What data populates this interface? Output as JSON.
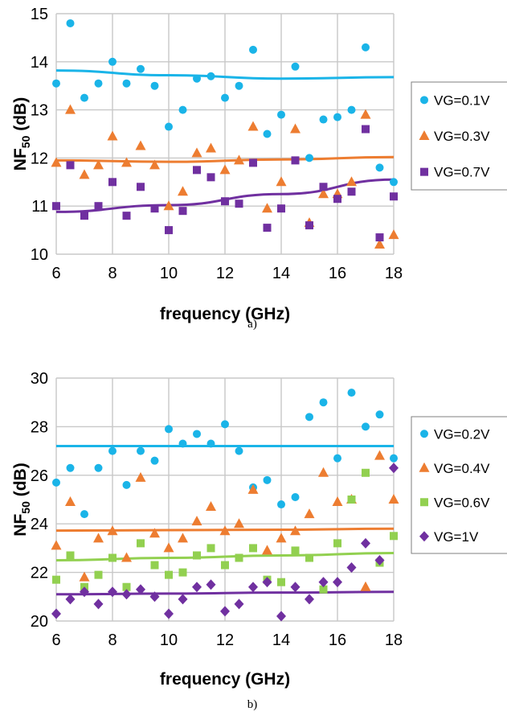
{
  "chart_data": [
    {
      "type": "scatter",
      "caption": "a)",
      "xlabel": "frequency (GHz)",
      "ylabel_main": "NF",
      "ylabel_sub": "50",
      "ylabel_unit": " (dB)",
      "xlim": [
        6,
        18
      ],
      "ylim": [
        10,
        15
      ],
      "xticks": [
        6,
        8,
        10,
        12,
        14,
        16,
        18
      ],
      "yticks": [
        10,
        11,
        12,
        13,
        14,
        15
      ],
      "grid": true,
      "legend_position": "right",
      "series": [
        {
          "name": "VG=0.1V",
          "color": "#1ab4e8",
          "marker": "circle",
          "x": [
            6,
            6.5,
            7,
            7.5,
            8,
            8.5,
            9,
            9.5,
            10,
            10.5,
            11,
            11.5,
            12,
            12.5,
            13,
            13.5,
            14,
            14.5,
            15,
            15.5,
            16,
            16.5,
            17,
            17.5,
            18
          ],
          "y": [
            13.55,
            14.8,
            13.25,
            13.55,
            14.0,
            13.55,
            13.85,
            13.5,
            12.65,
            13.0,
            13.65,
            13.7,
            13.25,
            13.5,
            14.25,
            12.5,
            12.9,
            13.9,
            12.0,
            12.8,
            12.85,
            13.0,
            14.3,
            11.8,
            11.5
          ],
          "trend": [
            13.82,
            13.72,
            13.65,
            13.68
          ]
        },
        {
          "name": "VG=0.3V",
          "color": "#ed7d31",
          "marker": "triangle",
          "x": [
            6,
            6.5,
            7,
            7.5,
            8,
            8.5,
            9,
            9.5,
            10,
            10.5,
            11,
            11.5,
            12,
            12.5,
            13,
            13.5,
            14,
            14.5,
            15,
            15.5,
            16,
            16.5,
            17,
            17.5,
            18
          ],
          "y": [
            11.9,
            13.0,
            11.65,
            11.85,
            12.45,
            11.9,
            12.25,
            11.85,
            11.0,
            11.3,
            12.1,
            12.2,
            11.75,
            11.95,
            12.65,
            10.95,
            11.5,
            12.6,
            10.65,
            11.25,
            11.25,
            11.5,
            12.9,
            10.2,
            10.4
          ],
          "trend": [
            11.95,
            11.92,
            11.97,
            12.02
          ]
        },
        {
          "name": "VG=0.7V",
          "color": "#7030a0",
          "marker": "square",
          "x": [
            6,
            6.5,
            7,
            7.5,
            8,
            8.5,
            9,
            9.5,
            10,
            10.5,
            11,
            11.5,
            12,
            12.5,
            13,
            13.5,
            14,
            14.5,
            15,
            15.5,
            16,
            16.5,
            17,
            17.5,
            18
          ],
          "y": [
            11.0,
            11.85,
            10.8,
            11.0,
            11.5,
            10.8,
            11.4,
            10.95,
            10.5,
            10.9,
            11.75,
            11.6,
            11.1,
            11.05,
            11.9,
            10.55,
            10.95,
            11.95,
            10.6,
            11.4,
            11.15,
            11.3,
            12.6,
            10.35,
            11.2
          ],
          "trend": [
            10.88,
            11.02,
            11.25,
            11.55
          ]
        }
      ]
    },
    {
      "type": "scatter",
      "caption": "b)",
      "xlabel": "frequency (GHz)",
      "ylabel_main": "NF",
      "ylabel_sub": "50",
      "ylabel_unit": " (dB)",
      "xlim": [
        6,
        18
      ],
      "ylim": [
        20,
        30
      ],
      "xticks": [
        6,
        8,
        10,
        12,
        14,
        16,
        18
      ],
      "yticks": [
        20,
        22,
        24,
        26,
        28,
        30
      ],
      "grid": true,
      "legend_position": "right",
      "series": [
        {
          "name": "VG=0.2V",
          "color": "#1ab4e8",
          "marker": "circle",
          "x": [
            6,
            6.5,
            7,
            7.5,
            8,
            8.5,
            9,
            9.5,
            10,
            10.5,
            11,
            11.5,
            12,
            12.5,
            13,
            13.5,
            14,
            14.5,
            15,
            15.5,
            16,
            16.5,
            17,
            17.5,
            18
          ],
          "y": [
            25.7,
            26.3,
            24.4,
            26.3,
            27.0,
            25.6,
            27.0,
            26.6,
            27.9,
            27.3,
            27.7,
            27.3,
            28.1,
            27.0,
            25.5,
            25.8,
            24.8,
            25.1,
            28.4,
            29.0,
            26.7,
            29.4,
            28.0,
            28.5,
            26.7
          ],
          "trend": [
            27.2,
            27.2,
            27.2,
            27.2
          ]
        },
        {
          "name": "VG=0.4V",
          "color": "#ed7d31",
          "marker": "triangle",
          "x": [
            6,
            6.5,
            7,
            7.5,
            8,
            8.5,
            9,
            9.5,
            10,
            10.5,
            11,
            11.5,
            12,
            12.5,
            13,
            13.5,
            14,
            14.5,
            15,
            15.5,
            16,
            16.5,
            17,
            17.5,
            18
          ],
          "y": [
            23.1,
            24.9,
            21.8,
            23.4,
            23.7,
            22.6,
            25.9,
            23.6,
            23.0,
            23.4,
            24.1,
            24.7,
            23.7,
            24.0,
            25.4,
            22.9,
            23.4,
            23.7,
            24.4,
            26.1,
            24.9,
            25.0,
            21.4,
            26.8,
            25.0
          ],
          "trend": [
            23.72,
            23.74,
            23.76,
            23.8
          ]
        },
        {
          "name": "VG=0.6V",
          "color": "#92d050",
          "marker": "square",
          "x": [
            6,
            6.5,
            7,
            7.5,
            8,
            8.5,
            9,
            9.5,
            10,
            10.5,
            11,
            11.5,
            12,
            12.5,
            13,
            13.5,
            14,
            14.5,
            15,
            15.5,
            16,
            16.5,
            17,
            17.5,
            18
          ],
          "y": [
            21.7,
            22.7,
            21.4,
            21.9,
            22.6,
            21.4,
            23.2,
            22.3,
            21.9,
            22.0,
            22.7,
            23.0,
            22.3,
            22.6,
            23.0,
            21.7,
            21.6,
            22.9,
            22.6,
            21.3,
            23.2,
            25.0,
            26.1,
            22.4,
            23.5
          ],
          "trend": [
            22.5,
            22.6,
            22.7,
            22.8
          ]
        },
        {
          "name": "VG=1V",
          "color": "#7030a0",
          "marker": "diamond",
          "x": [
            6,
            6.5,
            7,
            7.5,
            8,
            8.5,
            9,
            9.5,
            10,
            10.5,
            11,
            11.5,
            12,
            12.5,
            13,
            13.5,
            14,
            14.5,
            15,
            15.5,
            16,
            16.5,
            17,
            17.5,
            18
          ],
          "y": [
            20.3,
            20.9,
            21.2,
            20.7,
            21.2,
            21.1,
            21.3,
            21.0,
            20.3,
            20.9,
            21.4,
            21.5,
            20.4,
            20.7,
            21.4,
            21.6,
            20.2,
            21.4,
            20.9,
            21.6,
            21.6,
            22.2,
            23.2,
            22.5,
            26.3
          ],
          "trend": [
            21.1,
            21.13,
            21.17,
            21.2
          ]
        }
      ]
    }
  ]
}
